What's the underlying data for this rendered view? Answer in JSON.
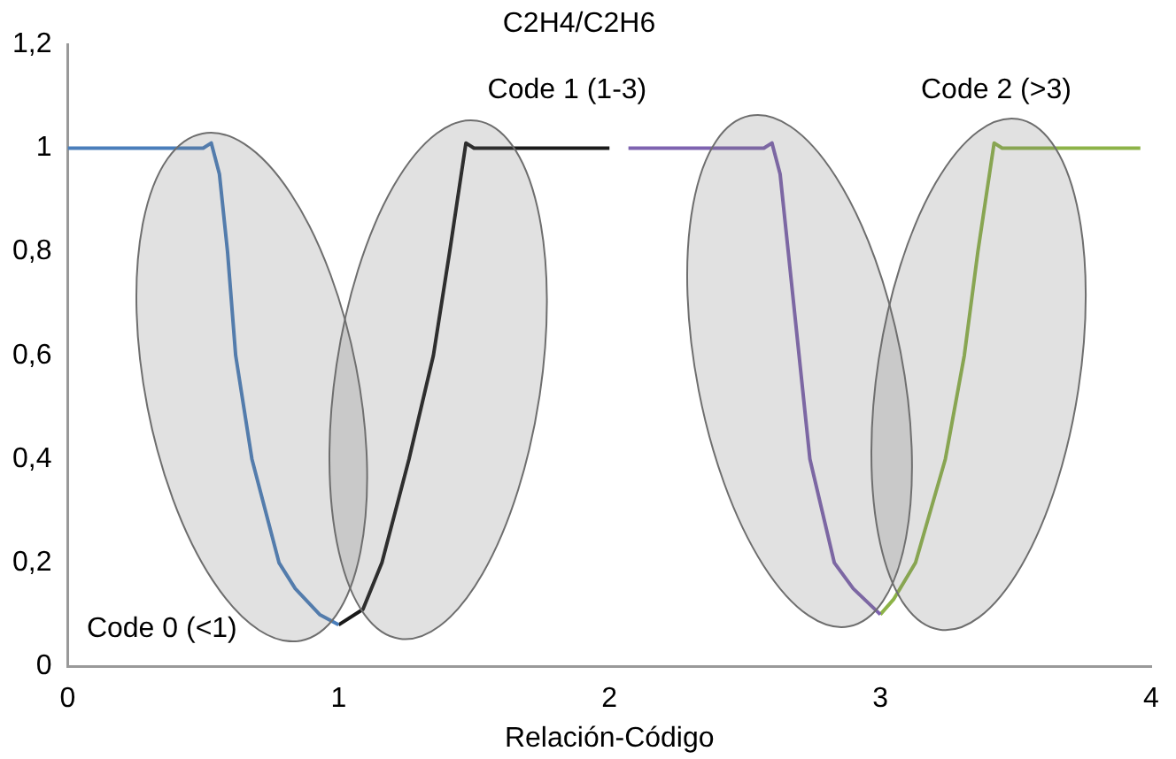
{
  "chart_data": {
    "type": "line",
    "title": "C2H4/C2H6",
    "xlabel": "Relación-Código",
    "xlim": [
      0,
      4
    ],
    "xticks": [
      0,
      1,
      2,
      3,
      4
    ],
    "ylim": [
      0,
      1.2
    ],
    "yticks": [
      0,
      {
        "value": 0.2,
        "label": "0,2"
      },
      {
        "value": 0.4,
        "label": "0,4"
      },
      {
        "value": 0.6,
        "label": "0,6"
      },
      {
        "value": 0.8,
        "label": "0,8"
      },
      1,
      {
        "value": 1.2,
        "label": "1,2"
      }
    ],
    "grid": false,
    "legend": false,
    "marker": "none",
    "line_style": "solid",
    "series": [
      {
        "color": "#4a7ebb",
        "x": [
          0,
          0.5,
          0.53,
          0.56,
          0.59,
          0.62,
          0.68,
          0.78,
          0.84,
          0.93,
          1.0
        ],
        "values": [
          1,
          1,
          1.01,
          0.95,
          0.8,
          0.6,
          0.4,
          0.2,
          0.15,
          0.1,
          0.08
        ]
      },
      {
        "color": "#1a1a1a",
        "x": [
          1.0,
          1.09,
          1.16,
          1.26,
          1.35,
          1.41,
          1.47,
          1.5,
          2.0
        ],
        "values": [
          0.08,
          0.11,
          0.2,
          0.4,
          0.6,
          0.8,
          1.01,
          1,
          1
        ]
      },
      {
        "color": "#7e63b0",
        "x": [
          2.07,
          2.57,
          2.6,
          2.63,
          2.66,
          2.7,
          2.74,
          2.83,
          2.9,
          3.0
        ],
        "values": [
          1,
          1,
          1.01,
          0.95,
          0.8,
          0.6,
          0.4,
          0.2,
          0.15,
          0.1
        ]
      },
      {
        "color": "#8db348",
        "x": [
          3.0,
          3.05,
          3.13,
          3.24,
          3.31,
          3.36,
          3.42,
          3.45,
          3.96
        ],
        "values": [
          0.1,
          0.13,
          0.2,
          0.4,
          0.6,
          0.8,
          1.01,
          1,
          1
        ]
      }
    ],
    "annotations": [
      "Code 0 (<1)",
      "Code 1 (1-3)",
      "Code 2 (>3)"
    ]
  }
}
